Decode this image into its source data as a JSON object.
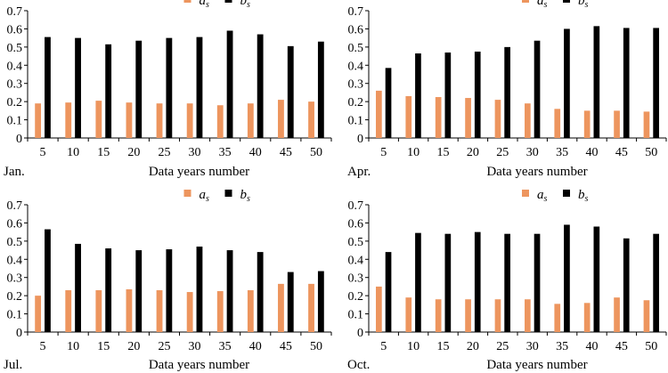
{
  "colors": {
    "a_s": "#ED955E",
    "b_s": "#000000",
    "axis": "#000000"
  },
  "legend": {
    "a": "a",
    "a_sub": "s",
    "b": "b",
    "b_sub": "s"
  },
  "chart_data": [
    {
      "type": "bar",
      "month": "Jan.",
      "xlabel": "Data years number",
      "categories": [
        "5",
        "10",
        "15",
        "20",
        "25",
        "30",
        "35",
        "40",
        "45",
        "50"
      ],
      "yticks": [
        "0",
        "0.1",
        "0.2",
        "0.3",
        "0.4",
        "0.5",
        "0.6",
        "0.7"
      ],
      "ylim": [
        0,
        0.7
      ],
      "series": [
        {
          "name": "a_s",
          "values": [
            0.19,
            0.195,
            0.205,
            0.195,
            0.19,
            0.19,
            0.18,
            0.19,
            0.21,
            0.2
          ]
        },
        {
          "name": "b_s",
          "values": [
            0.555,
            0.55,
            0.515,
            0.535,
            0.55,
            0.555,
            0.59,
            0.57,
            0.505,
            0.53
          ]
        }
      ]
    },
    {
      "type": "bar",
      "month": "Apr.",
      "xlabel": "Data years number",
      "categories": [
        "5",
        "10",
        "15",
        "20",
        "25",
        "30",
        "35",
        "40",
        "45",
        "50"
      ],
      "yticks": [
        "0",
        "0.1",
        "0.2",
        "0.3",
        "0.4",
        "0.5",
        "0.6",
        "0.7"
      ],
      "ylim": [
        0,
        0.7
      ],
      "series": [
        {
          "name": "a_s",
          "values": [
            0.26,
            0.23,
            0.225,
            0.22,
            0.21,
            0.19,
            0.16,
            0.15,
            0.15,
            0.145
          ]
        },
        {
          "name": "b_s",
          "values": [
            0.385,
            0.465,
            0.47,
            0.475,
            0.5,
            0.535,
            0.6,
            0.615,
            0.605,
            0.605
          ]
        }
      ]
    },
    {
      "type": "bar",
      "month": "Jul.",
      "xlabel": "Data years number",
      "categories": [
        "5",
        "10",
        "15",
        "20",
        "25",
        "30",
        "35",
        "40",
        "45",
        "50"
      ],
      "yticks": [
        "0",
        "0.1",
        "0.2",
        "0.3",
        "0.4",
        "0.5",
        "0.6",
        "0.7"
      ],
      "ylim": [
        0,
        0.7
      ],
      "series": [
        {
          "name": "a_s",
          "values": [
            0.2,
            0.23,
            0.23,
            0.235,
            0.23,
            0.22,
            0.225,
            0.23,
            0.265,
            0.265
          ]
        },
        {
          "name": "b_s",
          "values": [
            0.565,
            0.485,
            0.46,
            0.45,
            0.455,
            0.47,
            0.45,
            0.44,
            0.33,
            0.335
          ]
        }
      ]
    },
    {
      "type": "bar",
      "month": "Oct.",
      "xlabel": "Data years number",
      "categories": [
        "5",
        "10",
        "15",
        "20",
        "25",
        "30",
        "35",
        "40",
        "45",
        "50"
      ],
      "yticks": [
        "0",
        "0.1",
        "0.2",
        "0.3",
        "0.4",
        "0.5",
        "0.6",
        "0.7"
      ],
      "ylim": [
        0,
        0.7
      ],
      "series": [
        {
          "name": "a_s",
          "values": [
            0.25,
            0.19,
            0.18,
            0.18,
            0.18,
            0.18,
            0.155,
            0.16,
            0.19,
            0.175
          ]
        },
        {
          "name": "b_s",
          "values": [
            0.44,
            0.545,
            0.54,
            0.55,
            0.54,
            0.54,
            0.59,
            0.58,
            0.515,
            0.54
          ]
        }
      ]
    }
  ]
}
